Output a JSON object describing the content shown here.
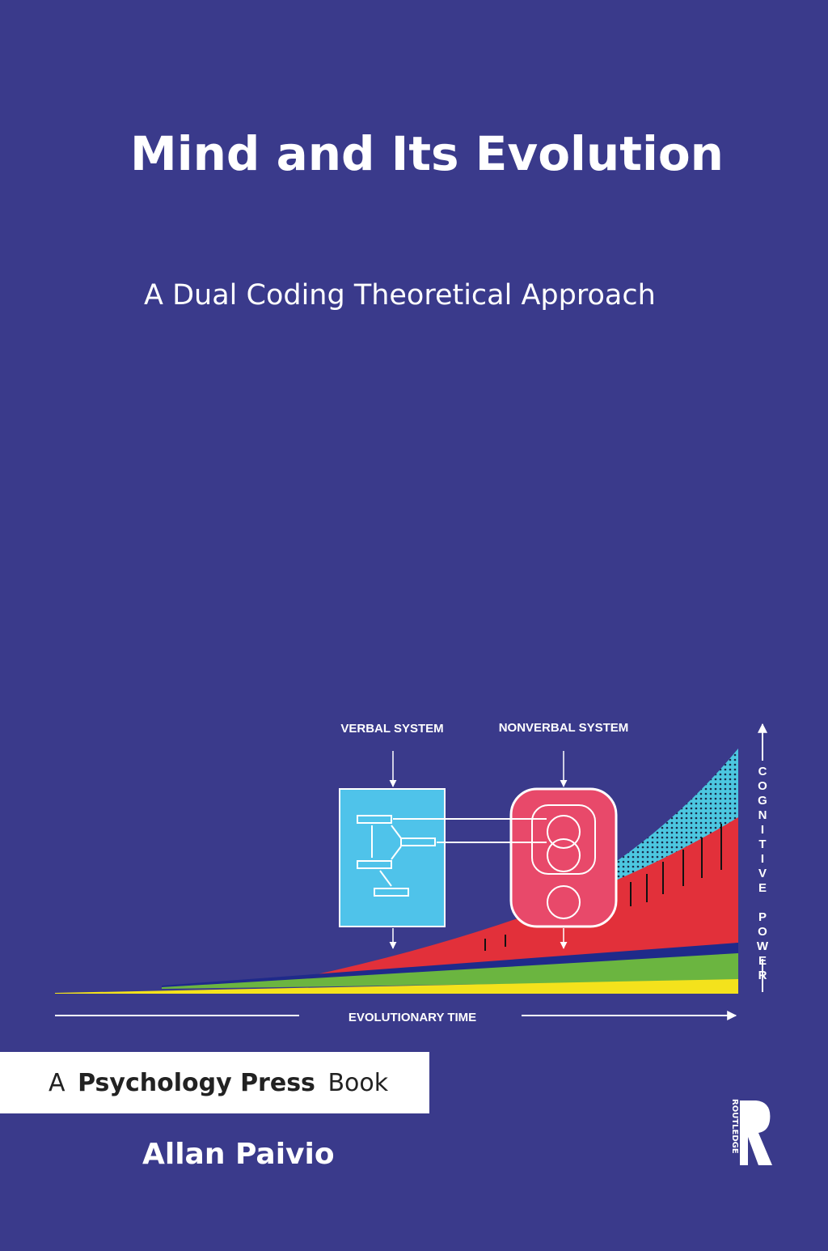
{
  "cover": {
    "title": "Mind and Its Evolution",
    "subtitle": "A Dual Coding Theoretical Approach",
    "figure": {
      "verbal_label": "VERBAL SYSTEM",
      "nonverbal_label": "NONVERBAL SYSTEM",
      "x_label": "EVOLUTIONARY TIME",
      "y_label": "COGNITIVE POWER"
    },
    "series": {
      "prefix": "A",
      "name": "Psychology Press",
      "suffix": "Book"
    },
    "author": "Allan Paivio",
    "publisher": "ROUTLEDGE"
  }
}
